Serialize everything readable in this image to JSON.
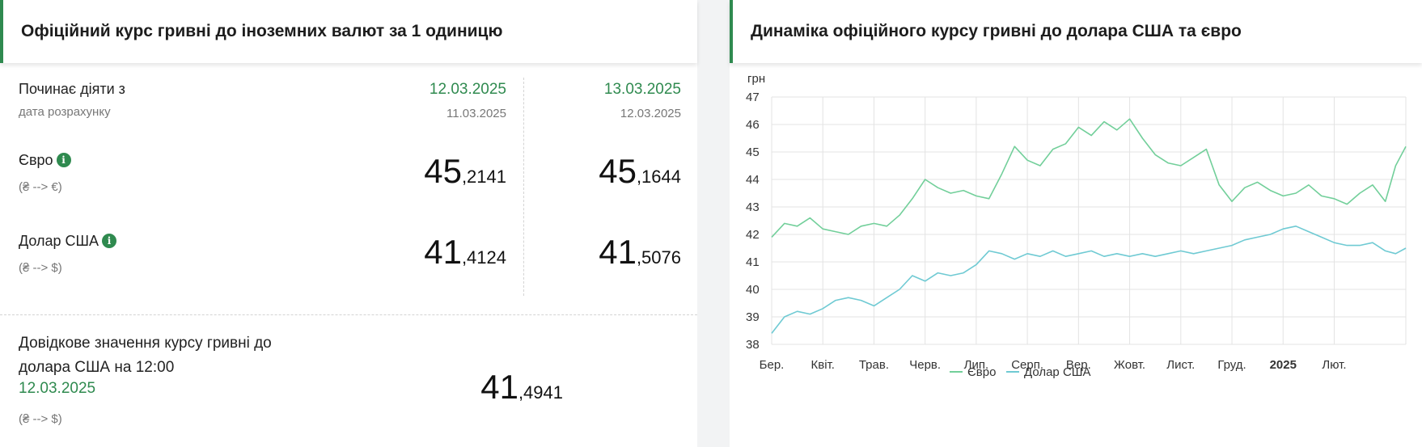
{
  "left_panel": {
    "title": "Офіційний курс гривні до іноземних валют за 1 одиницю",
    "effective_label": "Починає діяти з",
    "calc_date_label": "дата розрахунку",
    "columns": [
      {
        "effective_date": "12.03.2025",
        "calc_date": "11.03.2025"
      },
      {
        "effective_date": "13.03.2025",
        "calc_date": "12.03.2025"
      }
    ],
    "currencies": [
      {
        "name": "Євро",
        "pair": "(₴ --> €)",
        "info_icon": "info-icon",
        "rates": [
          {
            "int": "45",
            "frac": ",2141"
          },
          {
            "int": "45",
            "frac": ",1644"
          }
        ]
      },
      {
        "name": "Долар США",
        "pair": "(₴ --> $)",
        "info_icon": "info-icon",
        "rates": [
          {
            "int": "41",
            "frac": ",4124"
          },
          {
            "int": "41",
            "frac": ",5076"
          }
        ]
      }
    ],
    "reference": {
      "label": "Довідкове значення курсу гривні до долара США на 12:00",
      "date": "12.03.2025",
      "pair": "(₴ --> $)",
      "rate_int": "41",
      "rate_frac": ",4941"
    }
  },
  "right_panel": {
    "title": "Динаміка офіційного курсу гривні до долара США та євро"
  },
  "colors": {
    "accent_green": "#2f8a4f",
    "euro_line": "#72cf9a",
    "usd_line": "#6fcad3"
  },
  "chart_data": {
    "type": "line",
    "ylabel": "грн",
    "ylim": [
      38,
      47
    ],
    "yticks": [
      38,
      39,
      40,
      41,
      42,
      43,
      44,
      45,
      46,
      47
    ],
    "grid": true,
    "legend": "bottom",
    "xticks": [
      "Бер.",
      "Квіт.",
      "Трав.",
      "Черв.",
      "Лип.",
      "Серп.",
      "Вер.",
      "Жовт.",
      "Лист.",
      "Груд.",
      "2025",
      "Лют."
    ],
    "x": [
      0,
      0.25,
      0.5,
      0.75,
      1,
      1.25,
      1.5,
      1.75,
      2,
      2.25,
      2.5,
      2.75,
      3,
      3.25,
      3.5,
      3.75,
      4,
      4.25,
      4.5,
      4.75,
      5,
      5.25,
      5.5,
      5.75,
      6,
      6.25,
      6.5,
      6.75,
      7,
      7.25,
      7.5,
      7.75,
      8,
      8.25,
      8.5,
      8.75,
      9,
      9.25,
      9.5,
      9.75,
      10,
      10.25,
      10.5,
      10.75,
      11,
      11.25,
      11.5,
      11.75,
      12.0,
      12.2,
      12.4
    ],
    "series": [
      {
        "name": "Євро",
        "values": [
          41.9,
          42.4,
          42.3,
          42.6,
          42.2,
          42.1,
          42.0,
          42.3,
          42.4,
          42.3,
          42.7,
          43.3,
          44.0,
          43.7,
          43.5,
          43.6,
          43.4,
          43.3,
          44.2,
          45.2,
          44.7,
          44.5,
          45.1,
          45.3,
          45.9,
          45.6,
          46.1,
          45.8,
          46.2,
          45.5,
          44.9,
          44.6,
          44.5,
          44.8,
          45.1,
          43.8,
          43.2,
          43.7,
          43.9,
          43.6,
          43.4,
          43.5,
          43.8,
          43.4,
          43.3,
          43.1,
          43.5,
          43.8,
          43.2,
          44.5,
          45.2
        ]
      },
      {
        "name": "Долар США",
        "values": [
          38.4,
          39.0,
          39.2,
          39.1,
          39.3,
          39.6,
          39.7,
          39.6,
          39.4,
          39.7,
          40.0,
          40.5,
          40.3,
          40.6,
          40.5,
          40.6,
          40.9,
          41.4,
          41.3,
          41.1,
          41.3,
          41.2,
          41.4,
          41.2,
          41.3,
          41.4,
          41.2,
          41.3,
          41.2,
          41.3,
          41.2,
          41.3,
          41.4,
          41.3,
          41.4,
          41.5,
          41.6,
          41.8,
          41.9,
          42.0,
          42.2,
          42.3,
          42.1,
          41.9,
          41.7,
          41.6,
          41.6,
          41.7,
          41.4,
          41.3,
          41.5
        ]
      }
    ]
  }
}
